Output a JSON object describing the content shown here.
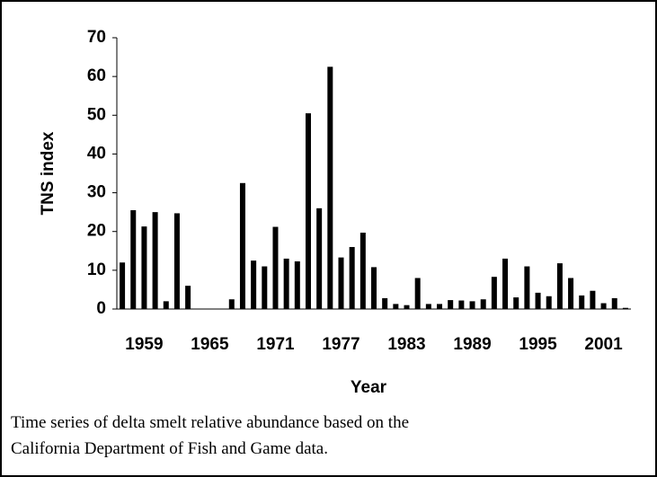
{
  "chart_data": {
    "type": "bar",
    "categories": [
      "1959",
      null,
      null,
      null,
      null,
      null,
      "1965",
      null,
      null,
      null,
      null,
      null,
      "1971",
      null,
      null,
      null,
      null,
      null,
      "1977",
      null,
      null,
      null,
      null,
      null,
      "1983",
      null,
      null,
      null,
      null,
      null,
      "1989",
      null,
      null,
      null,
      null,
      null,
      "1995",
      null,
      null,
      null,
      null,
      null,
      "2001",
      null,
      null,
      null,
      null
    ],
    "values": [
      12,
      25.5,
      21.3,
      25,
      2,
      24.7,
      6,
      0,
      0,
      0,
      2.5,
      32.5,
      12.5,
      11,
      21.2,
      13,
      12.3,
      50.5,
      26,
      62.5,
      13.3,
      16,
      19.7,
      10.8,
      2.8,
      1.3,
      1,
      8,
      1.3,
      1.3,
      2.3,
      2.2,
      2,
      2.5,
      8.3,
      13,
      3,
      11,
      4.2,
      3.3,
      11.8,
      8,
      3.5,
      4.7,
      1.5,
      2.8,
      0.3
    ],
    "color": "#000000",
    "ylim": [
      0,
      70
    ],
    "yticks": [
      0,
      10,
      20,
      30,
      40,
      50,
      60,
      70
    ],
    "x_label": "Year",
    "y_label": "TNS index",
    "caption": [
      "Time series of delta smelt relative abundance based on the",
      "California Department of Fish and Game data."
    ]
  }
}
